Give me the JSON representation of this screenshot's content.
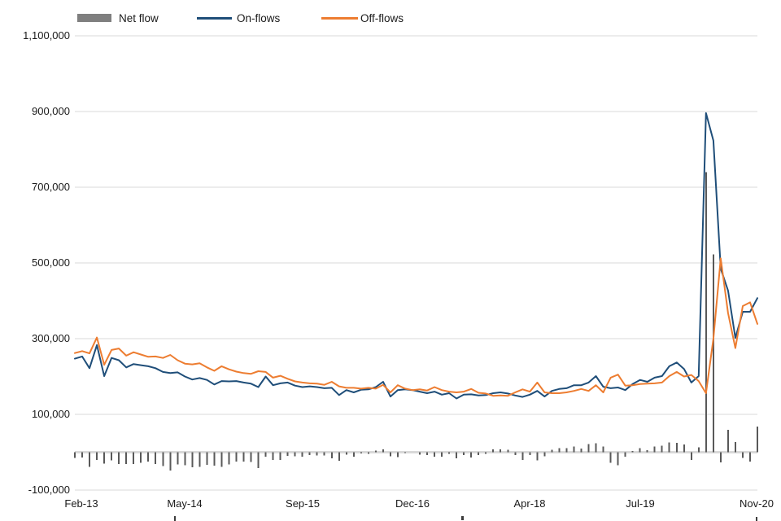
{
  "legend": [
    {
      "label": "Net flow",
      "type": "bar",
      "color": "#7f7f7f"
    },
    {
      "label": "On-flows",
      "type": "line",
      "color": "#1f4e79"
    },
    {
      "label": "Off-flows",
      "type": "line",
      "color": "#ed7d31"
    }
  ],
  "y_axis": {
    "tick_labels": [
      "1,100,000",
      "900,000",
      "700,000",
      "500,000",
      "300,000",
      "100,000",
      "-100,000"
    ],
    "tick_values": [
      1100000,
      900000,
      700000,
      500000,
      300000,
      100000,
      -100000
    ],
    "min": -100000,
    "max": 1100000
  },
  "x_axis": {
    "tick_labels": [
      "Feb-13",
      "May-14",
      "Sep-15",
      "Dec-16",
      "Apr-18",
      "Jul-19",
      "Nov-20"
    ],
    "tick_month_indices": [
      0,
      15,
      31,
      46,
      62,
      77,
      93
    ]
  },
  "colors": {
    "gridline": "#d9d9d9",
    "zero_axis": "#d9d9d9",
    "bar": "#595959",
    "on_flows": "#1f4e79",
    "off_flows": "#ed7d31"
  },
  "chart_data": {
    "type": "combo",
    "title": "",
    "xlabel": "",
    "ylabel": "",
    "ylim": [
      -100000,
      1100000
    ],
    "grid": true,
    "legend_position": "top",
    "x": [
      "Feb-13",
      "Mar-13",
      "Apr-13",
      "May-13",
      "Jun-13",
      "Jul-13",
      "Aug-13",
      "Sep-13",
      "Oct-13",
      "Nov-13",
      "Dec-13",
      "Jan-14",
      "Feb-14",
      "Mar-14",
      "Apr-14",
      "May-14",
      "Jun-14",
      "Jul-14",
      "Aug-14",
      "Sep-14",
      "Oct-14",
      "Nov-14",
      "Dec-14",
      "Jan-15",
      "Feb-15",
      "Mar-15",
      "Apr-15",
      "May-15",
      "Jun-15",
      "Jul-15",
      "Aug-15",
      "Sep-15",
      "Oct-15",
      "Nov-15",
      "Dec-15",
      "Jan-16",
      "Feb-16",
      "Mar-16",
      "Apr-16",
      "May-16",
      "Jun-16",
      "Jul-16",
      "Aug-16",
      "Sep-16",
      "Oct-16",
      "Nov-16",
      "Dec-16",
      "Jan-17",
      "Feb-17",
      "Mar-17",
      "Apr-17",
      "May-17",
      "Jun-17",
      "Jul-17",
      "Aug-17",
      "Sep-17",
      "Oct-17",
      "Nov-17",
      "Dec-17",
      "Jan-18",
      "Feb-18",
      "Mar-18",
      "Apr-18",
      "May-18",
      "Jun-18",
      "Jul-18",
      "Aug-18",
      "Sep-18",
      "Oct-18",
      "Nov-18",
      "Dec-18",
      "Jan-19",
      "Feb-19",
      "Mar-19",
      "Apr-19",
      "May-19",
      "Jun-19",
      "Jul-19",
      "Aug-19",
      "Sep-19",
      "Oct-19",
      "Nov-19",
      "Dec-19",
      "Jan-20",
      "Feb-20",
      "Mar-20",
      "Apr-20",
      "May-20",
      "Jun-20",
      "Jul-20",
      "Aug-20",
      "Sep-20",
      "Oct-20",
      "Nov-20"
    ],
    "series": [
      {
        "name": "Net flow",
        "type": "bar",
        "color": "#595959",
        "values": [
          -15000,
          -14000,
          -39000,
          -20000,
          -30000,
          -21000,
          -31000,
          -31000,
          -31000,
          -28000,
          -25000,
          -31000,
          -37000,
          -48000,
          -32000,
          -34000,
          -40000,
          -39000,
          -33000,
          -36000,
          -39000,
          -32000,
          -25000,
          -25000,
          -26000,
          -42000,
          -12000,
          -20000,
          -20000,
          -10000,
          -11000,
          -12000,
          -8000,
          -9000,
          -9000,
          -16000,
          -23000,
          -6000,
          -12000,
          -3000,
          -4000,
          4000,
          8000,
          -11000,
          -13000,
          -2000,
          0,
          -6000,
          -7000,
          -12000,
          -12000,
          -4000,
          -16000,
          -8000,
          -14000,
          -7000,
          -4000,
          7000,
          8000,
          6000,
          -8000,
          -20000,
          -8000,
          -22000,
          -11000,
          6000,
          11000,
          11000,
          15000,
          10000,
          22000,
          24000,
          15000,
          -28000,
          -34000,
          -12000,
          3000,
          11000,
          5000,
          15000,
          17000,
          26000,
          25000,
          20000,
          -20000,
          13000,
          740000,
          523000,
          -27000,
          59000,
          27000,
          -15000,
          -25000,
          68000
        ]
      },
      {
        "name": "On-flows",
        "type": "line",
        "color": "#1f4e79",
        "values": [
          247000,
          253000,
          222000,
          283000,
          201000,
          249000,
          243000,
          224000,
          233000,
          230000,
          227000,
          222000,
          212000,
          209000,
          211000,
          200000,
          192000,
          196000,
          191000,
          179000,
          188000,
          187000,
          188000,
          184000,
          181000,
          172000,
          200000,
          177000,
          182000,
          184000,
          176000,
          172000,
          174000,
          172000,
          169000,
          170000,
          151000,
          164000,
          158000,
          165000,
          166000,
          172000,
          186000,
          147000,
          164000,
          166000,
          164000,
          160000,
          156000,
          160000,
          152000,
          156000,
          142000,
          152000,
          153000,
          150000,
          151000,
          156000,
          158000,
          155000,
          150000,
          146000,
          152000,
          162000,
          147000,
          162000,
          167000,
          169000,
          177000,
          177000,
          184000,
          201000,
          173000,
          169000,
          171000,
          164000,
          180000,
          191000,
          186000,
          197000,
          201000,
          227000,
          237000,
          220000,
          184000,
          201000,
          896000,
          823000,
          485000,
          427000,
          302000,
          371000,
          371000,
          407000
        ]
      },
      {
        "name": "Off-flows",
        "type": "line",
        "color": "#ed7d31",
        "values": [
          262000,
          267000,
          261000,
          303000,
          231000,
          270000,
          274000,
          255000,
          264000,
          258000,
          252000,
          253000,
          249000,
          257000,
          243000,
          234000,
          232000,
          235000,
          224000,
          215000,
          227000,
          219000,
          213000,
          209000,
          207000,
          214000,
          212000,
          197000,
          202000,
          194000,
          187000,
          184000,
          182000,
          181000,
          178000,
          186000,
          174000,
          170000,
          170000,
          168000,
          170000,
          168000,
          178000,
          158000,
          177000,
          168000,
          164000,
          166000,
          163000,
          172000,
          164000,
          160000,
          158000,
          160000,
          167000,
          157000,
          155000,
          149000,
          150000,
          149000,
          158000,
          166000,
          160000,
          184000,
          158000,
          156000,
          156000,
          158000,
          162000,
          167000,
          162000,
          177000,
          158000,
          197000,
          205000,
          176000,
          177000,
          180000,
          181000,
          182000,
          184000,
          201000,
          212000,
          200000,
          204000,
          188000,
          156000,
          300000,
          512000,
          368000,
          275000,
          386000,
          396000,
          339000
        ]
      }
    ]
  }
}
